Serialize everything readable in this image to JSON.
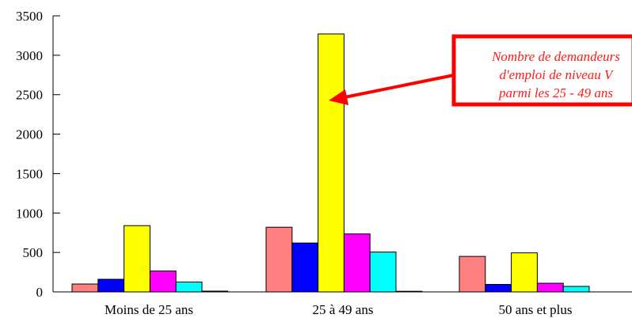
{
  "chart_data": {
    "type": "bar",
    "title": "",
    "xlabel": "",
    "ylabel": "",
    "ylim": [
      0,
      3500
    ],
    "yticks": [
      "0",
      "500",
      "1000",
      "1500",
      "2000",
      "2500",
      "3000",
      "3500"
    ],
    "ytick_values": [
      0,
      500,
      1000,
      1500,
      2000,
      2500,
      3000,
      3500
    ],
    "categories": [
      "Moins de 25 ans",
      "25 à 49 ans",
      "50 ans et plus"
    ],
    "series": [
      {
        "color": "#ff8080",
        "values": [
          100,
          820,
          450
        ]
      },
      {
        "color": "#0000ff",
        "values": [
          160,
          620,
          95
        ]
      },
      {
        "color": "#ffff00",
        "values": [
          840,
          3270,
          495
        ]
      },
      {
        "color": "#ff00ff",
        "values": [
          265,
          735,
          110
        ]
      },
      {
        "color": "#00ffff",
        "values": [
          125,
          505,
          70
        ]
      },
      {
        "color": "#000000",
        "values": [
          10,
          8,
          0
        ]
      }
    ],
    "grid": false,
    "legend": "none",
    "annotation": {
      "lines": [
        "Nombre de demandeurs",
        "d'emploi de niveau V",
        "parmi les 25 - 49 ans"
      ],
      "color": "#ff0000",
      "target_category": "25 à 49 ans",
      "target_series_index": 2
    }
  }
}
